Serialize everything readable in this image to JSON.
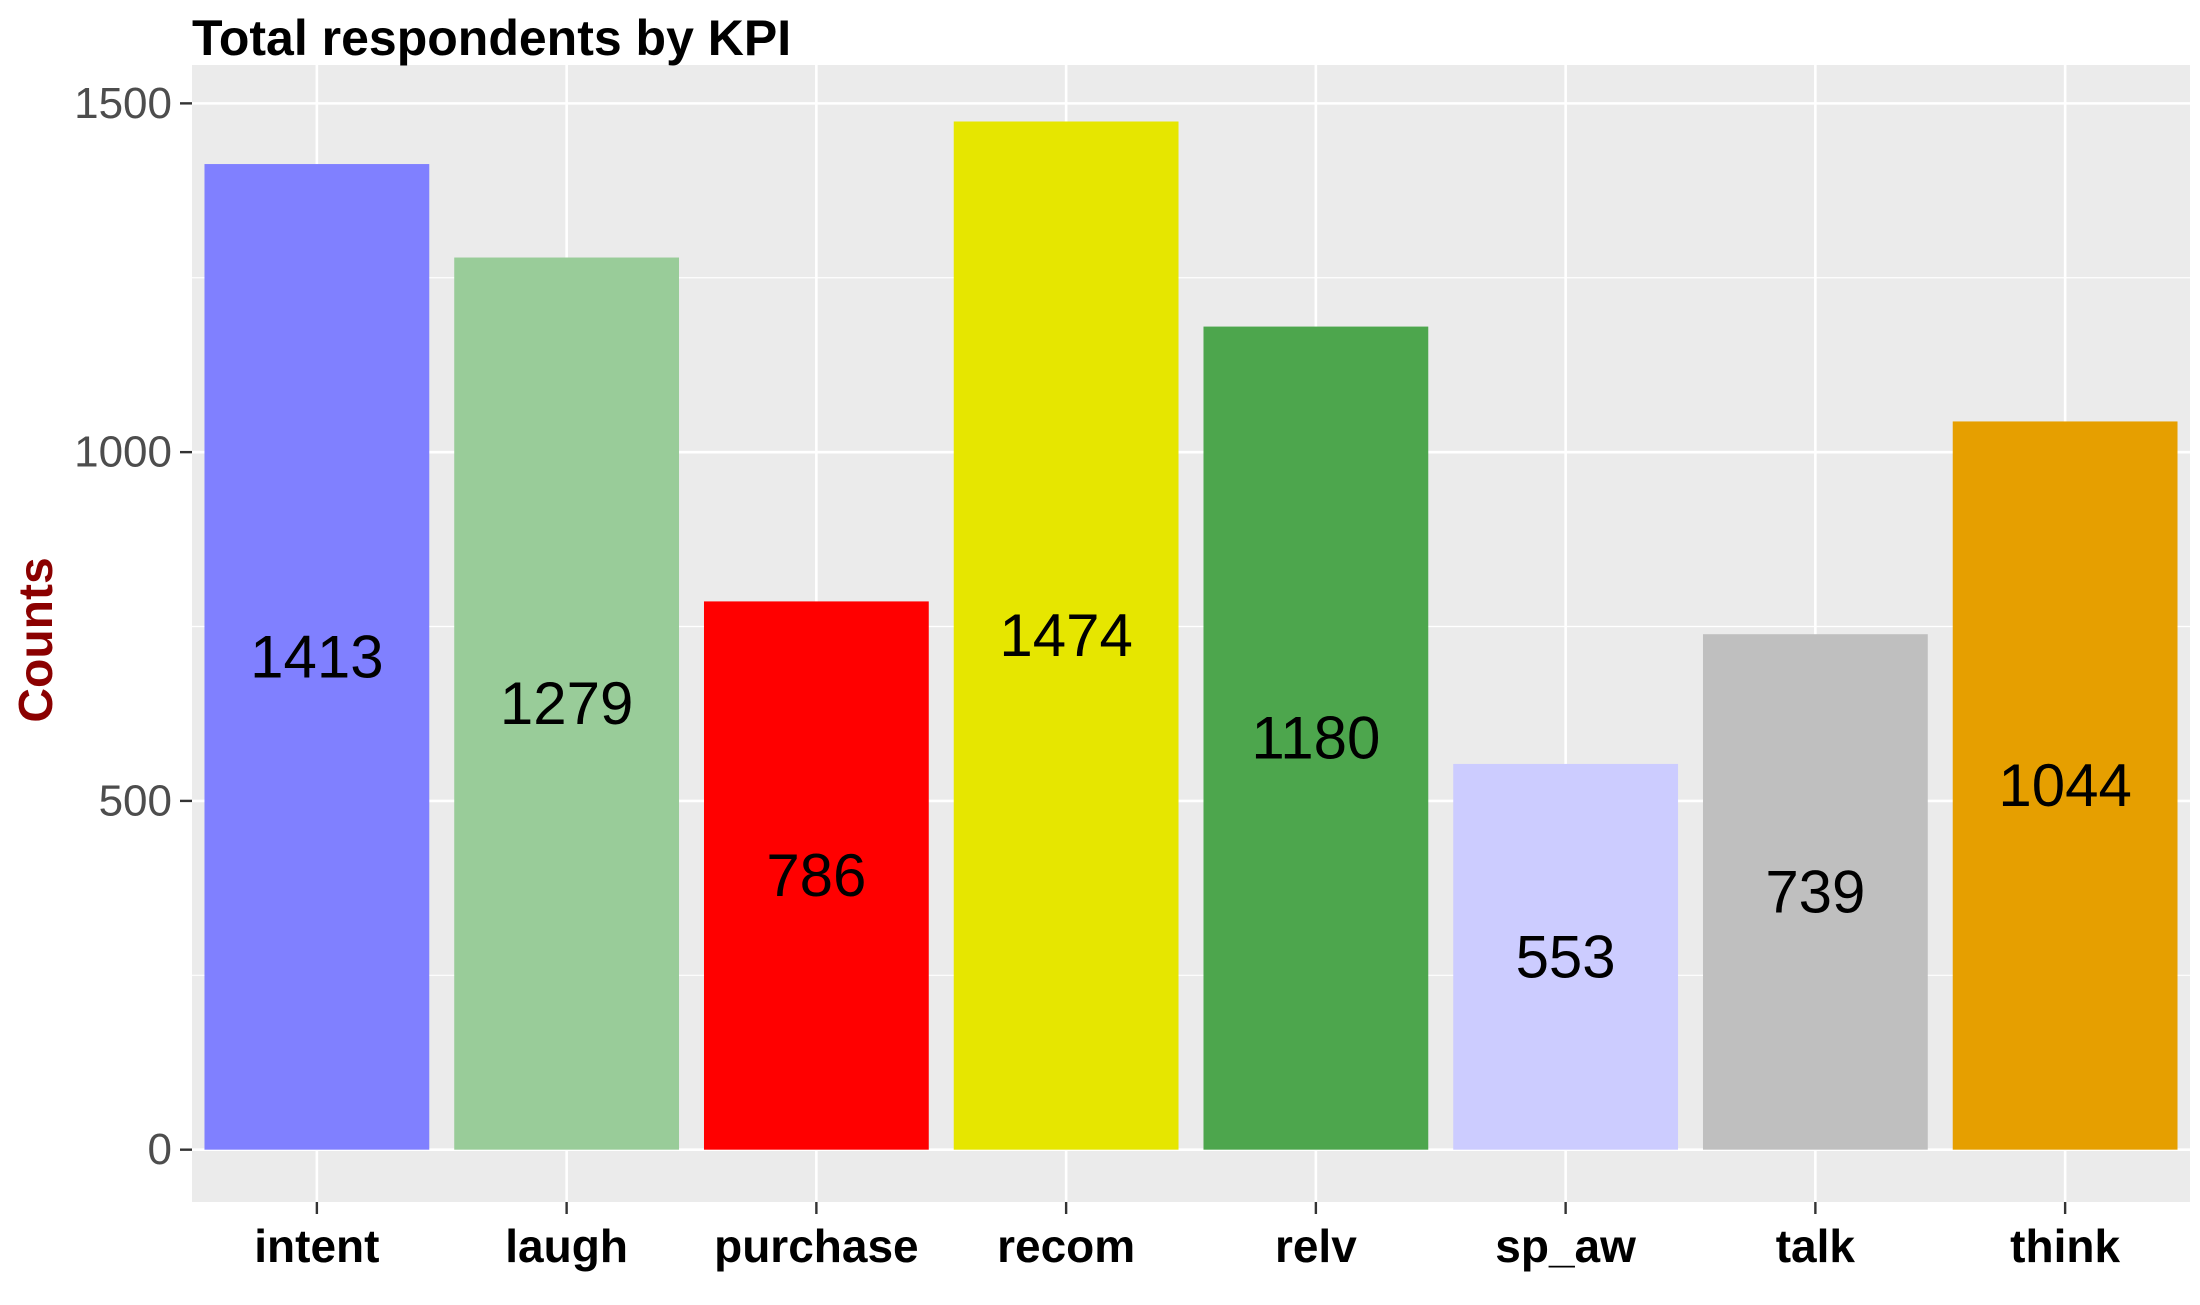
{
  "chart_data": {
    "type": "bar",
    "title": "Total respondents by KPI",
    "xlabel": "",
    "ylabel": "Counts",
    "categories": [
      "intent",
      "laugh",
      "purchase",
      "recom",
      "relv",
      "sp_aw",
      "talk",
      "think"
    ],
    "values": [
      1413,
      1279,
      786,
      1474,
      1180,
      553,
      739,
      1044
    ],
    "data_labels": [
      "1413",
      "1279",
      "786",
      "1474",
      "1180",
      "553",
      "739",
      "1044"
    ],
    "colors": [
      "#8080FF",
      "#99CC99",
      "#FF0000",
      "#E6E600",
      "#4DA64D",
      "#CCCCFF",
      "#BFBFBF",
      "#E69F00"
    ],
    "ylim": [
      -75,
      1555
    ],
    "yticks": [
      0,
      500,
      1000,
      1500
    ],
    "ytick_labels": [
      "0",
      "500",
      "1000",
      "1500"
    ],
    "grid": true,
    "legend": "none",
    "panel_background": "#EBEBEB",
    "grid_color": "#FFFFFF",
    "ylabel_color": "#8B0000"
  }
}
